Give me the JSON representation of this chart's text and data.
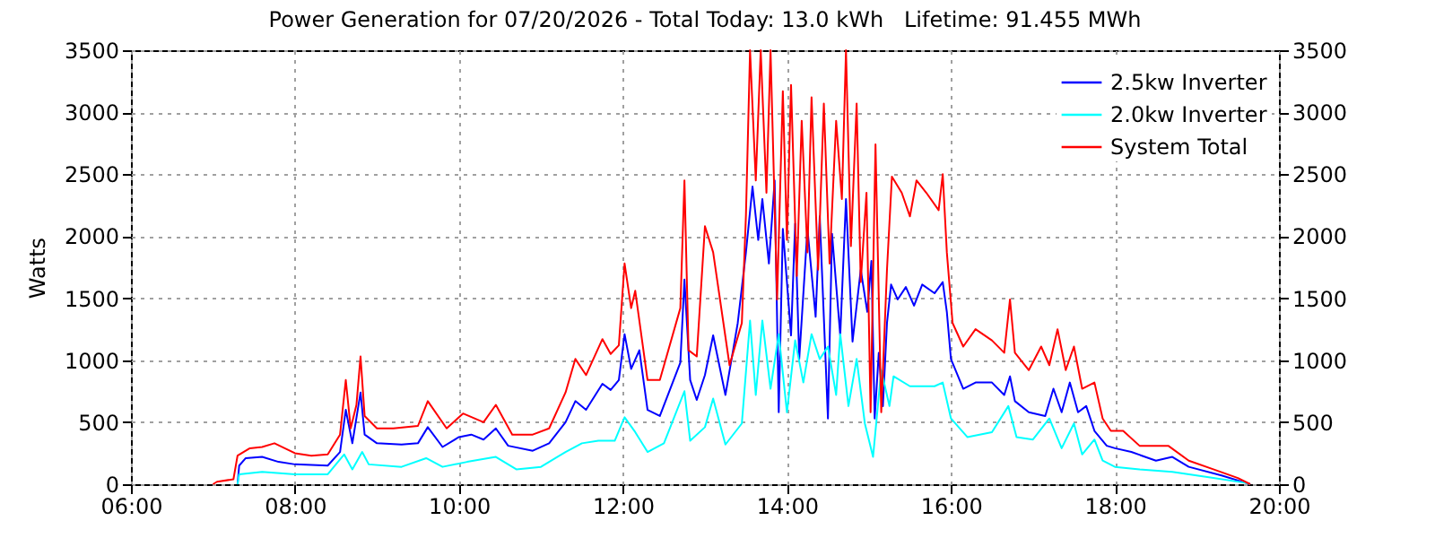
{
  "chart_data": {
    "type": "line",
    "title": "Power Generation for 07/20/2026 - Total Today: 13.0 kWh   Lifetime: 91.455 MWh",
    "ylabel": "Watts",
    "xlim": [
      6,
      20
    ],
    "xticks": [
      {
        "value": 6,
        "label": "06:00"
      },
      {
        "value": 8,
        "label": "08:00"
      },
      {
        "value": 10,
        "label": "10:00"
      },
      {
        "value": 12,
        "label": "12:00"
      },
      {
        "value": 14,
        "label": "14:00"
      },
      {
        "value": 16,
        "label": "16:00"
      },
      {
        "value": 18,
        "label": "18:00"
      },
      {
        "value": 20,
        "label": "20:00"
      }
    ],
    "ylim": [
      0,
      3500
    ],
    "yticks": [
      0,
      500,
      1000,
      1500,
      2000,
      2500,
      3000,
      3500
    ],
    "y2lim": [
      0,
      3500
    ],
    "y2ticks": [
      0,
      500,
      1000,
      1500,
      2000,
      2500,
      3000,
      3500
    ],
    "grid": true,
    "legend": "top right",
    "line_style": "solid",
    "series": [
      {
        "name": "2.5kw Inverter",
        "color": "#0000ff",
        "x": [
          7.3,
          7.32,
          7.4,
          7.6,
          7.8,
          8.0,
          8.4,
          8.55,
          8.62,
          8.7,
          8.8,
          8.85,
          9.0,
          9.3,
          9.5,
          9.62,
          9.8,
          10.0,
          10.15,
          10.3,
          10.45,
          10.6,
          10.9,
          11.1,
          11.3,
          11.42,
          11.55,
          11.75,
          11.85,
          11.95,
          12.02,
          12.1,
          12.2,
          12.3,
          12.45,
          12.7,
          12.75,
          12.82,
          12.9,
          13.0,
          13.1,
          13.25,
          13.4,
          13.5,
          13.58,
          13.65,
          13.7,
          13.78,
          13.85,
          13.9,
          13.95,
          14.05,
          14.1,
          14.15,
          14.25,
          14.35,
          14.4,
          14.5,
          14.55,
          14.65,
          14.72,
          14.8,
          14.9,
          14.98,
          15.03,
          15.07,
          15.12,
          15.17,
          15.22,
          15.27,
          15.35,
          15.45,
          15.55,
          15.65,
          15.8,
          15.9,
          15.95,
          16.0,
          16.15,
          16.3,
          16.5,
          16.65,
          16.72,
          16.78,
          16.95,
          17.15,
          17.25,
          17.35,
          17.45,
          17.55,
          17.65,
          17.75,
          17.9,
          18.0,
          18.2,
          18.5,
          18.7,
          18.9,
          19.3,
          19.6,
          19.65
        ],
        "values": [
          0,
          150,
          210,
          220,
          180,
          160,
          150,
          260,
          600,
          330,
          740,
          400,
          330,
          320,
          330,
          460,
          300,
          380,
          400,
          360,
          450,
          310,
          270,
          330,
          500,
          670,
          600,
          810,
          760,
          840,
          1210,
          930,
          1080,
          600,
          550,
          980,
          1650,
          840,
          680,
          880,
          1200,
          720,
          1300,
          1870,
          2400,
          1970,
          2300,
          1780,
          2450,
          580,
          2060,
          1200,
          2100,
          1010,
          2060,
          1350,
          2160,
          530,
          2020,
          1200,
          2300,
          1150,
          1730,
          1390,
          1800,
          530,
          1060,
          630,
          1300,
          1610,
          1490,
          1590,
          1440,
          1610,
          1540,
          1630,
          1390,
          1010,
          770,
          820,
          820,
          720,
          870,
          670,
          580,
          550,
          770,
          580,
          820,
          580,
          630,
          430,
          310,
          290,
          260,
          190,
          220,
          140,
          70,
          10,
          0
        ]
      },
      {
        "name": "2.0kw Inverter",
        "color": "#00ffff",
        "x": [
          7.3,
          7.32,
          7.6,
          8.0,
          8.4,
          8.6,
          8.7,
          8.82,
          8.9,
          9.3,
          9.6,
          9.8,
          10.1,
          10.45,
          10.7,
          11.0,
          11.3,
          11.5,
          11.7,
          11.9,
          12.02,
          12.15,
          12.3,
          12.5,
          12.75,
          12.82,
          13.0,
          13.1,
          13.25,
          13.45,
          13.55,
          13.62,
          13.7,
          13.8,
          13.9,
          14.0,
          14.1,
          14.2,
          14.3,
          14.4,
          14.5,
          14.6,
          14.65,
          14.75,
          14.85,
          14.95,
          15.05,
          15.15,
          15.25,
          15.3,
          15.5,
          15.8,
          15.9,
          16.0,
          16.2,
          16.5,
          16.7,
          16.8,
          17.0,
          17.2,
          17.35,
          17.5,
          17.6,
          17.75,
          17.85,
          18.0,
          18.3,
          18.7,
          19.2,
          19.6,
          19.65
        ],
        "values": [
          0,
          80,
          100,
          80,
          80,
          240,
          120,
          260,
          160,
          140,
          210,
          140,
          180,
          220,
          120,
          140,
          260,
          330,
          350,
          350,
          540,
          420,
          260,
          330,
          750,
          350,
          460,
          690,
          320,
          490,
          1320,
          720,
          1320,
          770,
          1210,
          580,
          1160,
          820,
          1210,
          1010,
          1110,
          720,
          1210,
          630,
          1010,
          490,
          220,
          920,
          630,
          870,
          790,
          790,
          820,
          530,
          380,
          420,
          630,
          380,
          360,
          530,
          290,
          490,
          240,
          360,
          190,
          140,
          120,
          100,
          50,
          10,
          0
        ]
      },
      {
        "name": "System Total",
        "color": "#ff0000",
        "x": [
          7.0,
          7.05,
          7.25,
          7.3,
          7.45,
          7.6,
          7.75,
          8.0,
          8.2,
          8.4,
          8.55,
          8.62,
          8.68,
          8.75,
          8.8,
          8.85,
          9.0,
          9.2,
          9.5,
          9.62,
          9.85,
          10.05,
          10.3,
          10.45,
          10.65,
          10.9,
          11.1,
          11.3,
          11.42,
          11.55,
          11.75,
          11.85,
          11.95,
          12.02,
          12.1,
          12.15,
          12.3,
          12.45,
          12.7,
          12.75,
          12.8,
          12.9,
          13.0,
          13.1,
          13.3,
          13.45,
          13.5,
          13.55,
          13.62,
          13.68,
          13.75,
          13.8,
          13.88,
          13.95,
          14.0,
          14.05,
          14.12,
          14.18,
          14.25,
          14.3,
          14.38,
          14.45,
          14.52,
          14.6,
          14.67,
          14.72,
          14.78,
          14.85,
          14.9,
          14.97,
          15.02,
          15.08,
          15.15,
          15.22,
          15.28,
          15.4,
          15.5,
          15.58,
          15.7,
          15.85,
          15.9,
          15.95,
          16.02,
          16.15,
          16.3,
          16.5,
          16.65,
          16.72,
          16.78,
          16.95,
          17.1,
          17.2,
          17.3,
          17.4,
          17.5,
          17.6,
          17.75,
          17.85,
          17.95,
          18.1,
          18.3,
          18.5,
          18.65,
          18.9,
          19.2,
          19.5,
          19.65
        ],
        "values": [
          0,
          20,
          40,
          230,
          290,
          300,
          330,
          250,
          230,
          240,
          400,
          840,
          450,
          640,
          1030,
          550,
          450,
          450,
          470,
          670,
          450,
          570,
          500,
          640,
          400,
          400,
          450,
          740,
          1010,
          880,
          1170,
          1050,
          1120,
          1780,
          1420,
          1560,
          840,
          840,
          1420,
          2450,
          1080,
          1030,
          2080,
          1870,
          960,
          1300,
          2170,
          3500,
          2450,
          3500,
          2350,
          3500,
          1490,
          3170,
          1970,
          3220,
          1680,
          2930,
          1870,
          3120,
          1730,
          3070,
          1780,
          2930,
          2300,
          3500,
          1920,
          3070,
          1630,
          2350,
          580,
          2740,
          580,
          1730,
          2480,
          2350,
          2160,
          2450,
          2350,
          2210,
          2500,
          1870,
          1300,
          1110,
          1250,
          1160,
          1060,
          1490,
          1060,
          920,
          1110,
          960,
          1250,
          920,
          1110,
          770,
          820,
          530,
          430,
          430,
          310,
          310,
          310,
          190,
          120,
          50,
          0
        ]
      }
    ]
  }
}
